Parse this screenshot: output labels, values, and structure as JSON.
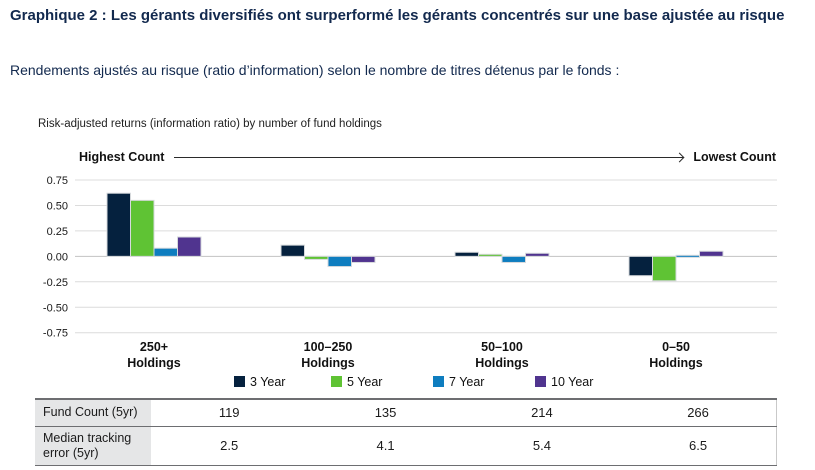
{
  "header": {
    "title": "Graphique 2 : Les gérants diversifiés ont surperformé les gérants concentrés sur une base ajustée au risque",
    "subtitle": "Rendements ajustés au risque (ratio d’information) selon le nombre de titres détenus par le fonds :"
  },
  "chart_data": {
    "type": "bar",
    "title": "Risk-adjusted returns (information ratio) by number of fund holdings",
    "axis_header": {
      "left": "Highest Count",
      "right": "Lowest Count"
    },
    "categories": [
      "250+",
      "100–250",
      "50–100",
      "0–50"
    ],
    "category_line2": "Holdings",
    "series": [
      {
        "name": "3 Year",
        "color": "#05213e",
        "values": [
          0.62,
          0.11,
          0.04,
          -0.19
        ]
      },
      {
        "name": "5 Year",
        "color": "#5fc334",
        "values": [
          0.55,
          -0.03,
          0.02,
          -0.24
        ]
      },
      {
        "name": "7 Year",
        "color": "#0e7dbf",
        "values": [
          0.08,
          -0.1,
          -0.06,
          0.01
        ]
      },
      {
        "name": "10 Year",
        "color": "#50348f",
        "values": [
          0.19,
          -0.06,
          0.03,
          0.05
        ]
      }
    ],
    "ylim": [
      -0.75,
      0.75
    ],
    "ytick_labels": [
      "0.75",
      "0.50",
      "0.25",
      "0.00",
      "-0.25",
      "-0.50",
      "-0.75"
    ],
    "grid": true,
    "legend_position": "bottom",
    "colors": {
      "gridline": "#dcdcdc",
      "zeroline": "#c2c2c2",
      "bar_outline": "#d6d9dc",
      "text": "#1a1a1a"
    }
  },
  "table": {
    "rows": [
      {
        "label": "Fund Count (5yr)",
        "values": [
          "119",
          "135",
          "214",
          "266"
        ]
      },
      {
        "label": "Median tracking error (5yr)",
        "values": [
          "2.5",
          "4.1",
          "5.4",
          "6.5"
        ]
      }
    ]
  }
}
